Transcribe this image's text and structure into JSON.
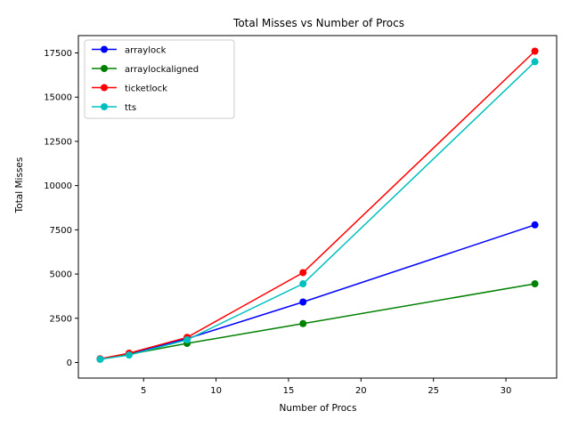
{
  "chart_data": {
    "type": "line",
    "title": "Total Misses vs Number of Procs",
    "xlabel": "Number of Procs",
    "ylabel": "Total Misses",
    "x": [
      2,
      4,
      8,
      16,
      32
    ],
    "xlim": [
      0.5,
      33.5
    ],
    "ylim": [
      -880,
      18480
    ],
    "xticks": [
      5,
      10,
      15,
      20,
      25,
      30
    ],
    "yticks": [
      0,
      2500,
      5000,
      7500,
      10000,
      12500,
      15000,
      17500
    ],
    "grid": false,
    "legend_position": "top-left",
    "series": [
      {
        "name": "arraylock",
        "color": "#0000ff",
        "values": [
          200,
          500,
          1350,
          3420,
          7780
        ]
      },
      {
        "name": "arraylockaligned",
        "color": "#008000",
        "values": [
          190,
          470,
          1080,
          2200,
          4450
        ]
      },
      {
        "name": "ticketlock",
        "color": "#ff0000",
        "values": [
          210,
          530,
          1420,
          5080,
          17600
        ]
      },
      {
        "name": "tts",
        "color": "#00bfbf",
        "values": [
          180,
          420,
          1280,
          4450,
          17000
        ]
      }
    ]
  }
}
